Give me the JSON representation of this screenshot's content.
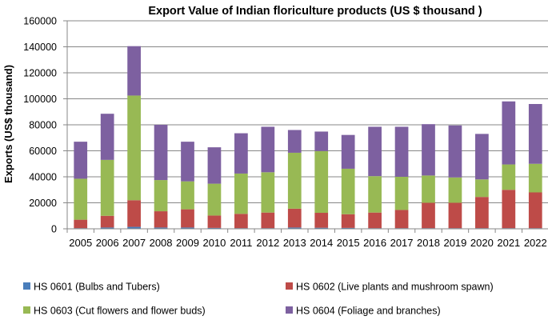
{
  "chart_data": {
    "type": "bar",
    "stacked": true,
    "title": "Export Value of Indian floriculture products (US $ thousand )",
    "xlabel": "",
    "ylabel": "Exports (US$ thousand)",
    "ylim": [
      0,
      160000
    ],
    "yticks": [
      0,
      20000,
      40000,
      60000,
      80000,
      100000,
      120000,
      140000,
      160000
    ],
    "grid": "horizontal",
    "legend_position": "bottom",
    "categories": [
      "2005",
      "2006",
      "2007",
      "2008",
      "2009",
      "2010",
      "2011",
      "2012",
      "2013",
      "2014",
      "2015",
      "2016",
      "2017",
      "2018",
      "2019",
      "2020",
      "2021",
      "2022"
    ],
    "series": [
      {
        "name": "HS 0601 (Bulbs and Tubers)",
        "color": "#4a7ebb",
        "values": [
          500,
          1000,
          1500,
          1000,
          1000,
          700,
          500,
          500,
          1000,
          800,
          700,
          500,
          500,
          500,
          500,
          500,
          500,
          500
        ]
      },
      {
        "name": "HS 0602 (Live plants and mushroom spawn)",
        "color": "#be4b48",
        "values": [
          6500,
          9000,
          20500,
          12500,
          14000,
          9500,
          11000,
          12000,
          14500,
          11500,
          10500,
          12000,
          14000,
          19500,
          19500,
          24000,
          29500,
          27500
        ]
      },
      {
        "name": "HS 0603 (Cut flowers and flower buds)",
        "color": "#98b954",
        "values": [
          31500,
          43000,
          80500,
          24000,
          21500,
          24500,
          31000,
          31000,
          43000,
          47500,
          35000,
          28000,
          25500,
          21000,
          19500,
          13500,
          19500,
          22000
        ]
      },
      {
        "name": "HS 0604 (Foliage and branches)",
        "color": "#7d60a0",
        "values": [
          28500,
          35500,
          38000,
          42500,
          30500,
          28000,
          31000,
          35000,
          17500,
          15000,
          26000,
          38000,
          38500,
          39500,
          40000,
          35000,
          48500,
          46000
        ]
      }
    ]
  }
}
